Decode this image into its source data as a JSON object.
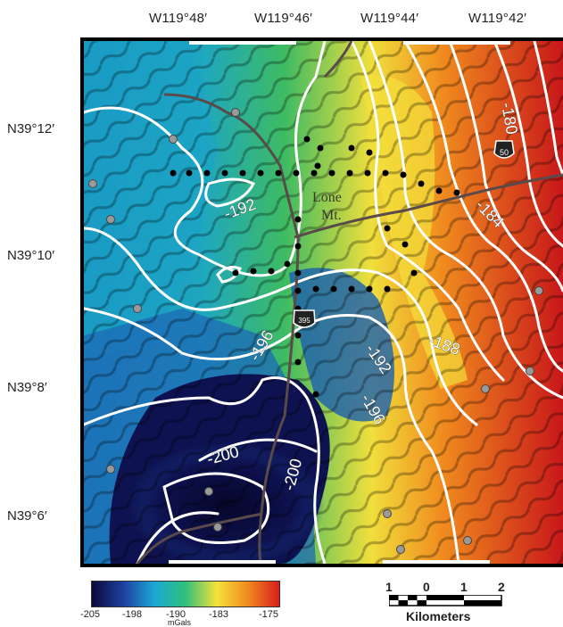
{
  "longitude_labels": [
    "W119°48′",
    "W119°46′",
    "W119°44′",
    "W119°42′"
  ],
  "latitude_labels": [
    "N39°12′",
    "N39°10′",
    "N39°8′",
    "N39°6′"
  ],
  "contour_labels": [
    "-180",
    "-184",
    "-188",
    "-192",
    "-192",
    "-196",
    "-196",
    "-200",
    "-200"
  ],
  "place_label": [
    "Lone",
    "Mt."
  ],
  "highway_shields": [
    "50",
    "395"
  ],
  "colorbar": {
    "ticks": [
      "-205",
      "-198",
      "-190",
      "-183",
      "-175"
    ],
    "unit": "mGals",
    "colors": [
      "#0c0a3a",
      "#1e3fa0",
      "#1aa8d6",
      "#2fc079",
      "#f4e23a",
      "#f08a1e",
      "#d81d1d"
    ]
  },
  "scale_bar": {
    "ticks": [
      "1",
      "0",
      "1",
      "2"
    ],
    "title": "Kilometers"
  }
}
